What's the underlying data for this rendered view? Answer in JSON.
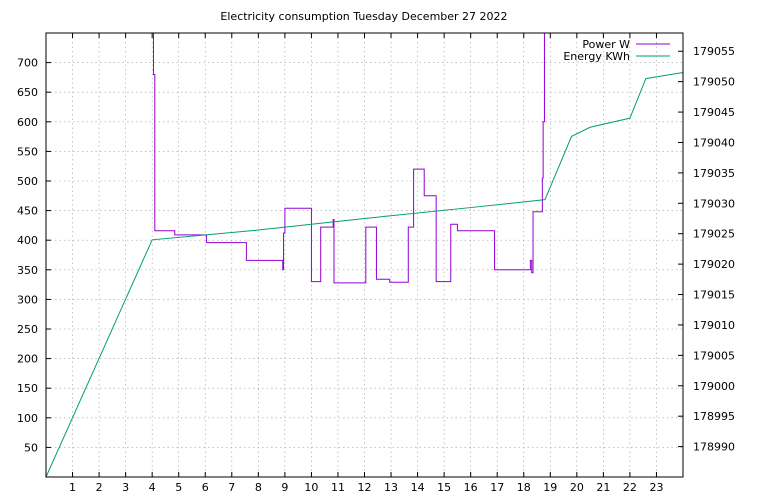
{
  "chart_data": {
    "type": "line",
    "title": "Electricity consumption Tuesday December 27 2022",
    "xlabel": "",
    "ylabel": "",
    "y2label": "",
    "xlim": [
      0,
      24
    ],
    "ylim": [
      0,
      750
    ],
    "y2lim": [
      178985,
      179058
    ],
    "x_ticks": [
      1,
      2,
      3,
      4,
      5,
      6,
      7,
      8,
      9,
      10,
      11,
      12,
      13,
      14,
      15,
      16,
      17,
      18,
      19,
      20,
      21,
      22,
      23
    ],
    "y_ticks": [
      50,
      100,
      150,
      200,
      250,
      300,
      350,
      400,
      450,
      500,
      550,
      600,
      650,
      700
    ],
    "y2_ticks": [
      178990,
      178995,
      179000,
      179005,
      179010,
      179015,
      179020,
      179025,
      179030,
      179035,
      179040,
      179045,
      179050,
      179055
    ],
    "grid": true,
    "legend_position": "top-right",
    "colors": {
      "power": "#9400d3",
      "energy": "#009e73"
    },
    "series": [
      {
        "name": "Power W",
        "axis": "y",
        "style": "steps",
        "points": [
          [
            4.0,
            750
          ],
          [
            4.05,
            680
          ],
          [
            4.1,
            416
          ],
          [
            4.8,
            416
          ],
          [
            4.85,
            409
          ],
          [
            6.0,
            409
          ],
          [
            6.05,
            396
          ],
          [
            7.5,
            396
          ],
          [
            7.55,
            366
          ],
          [
            8.9,
            366
          ],
          [
            8.92,
            350
          ],
          [
            8.95,
            412
          ],
          [
            9.0,
            454
          ],
          [
            9.95,
            454
          ],
          [
            10.0,
            330
          ],
          [
            10.3,
            330
          ],
          [
            10.35,
            422
          ],
          [
            10.8,
            422
          ],
          [
            10.82,
            435
          ],
          [
            10.85,
            328
          ],
          [
            12.0,
            328
          ],
          [
            12.05,
            422
          ],
          [
            12.4,
            422
          ],
          [
            12.45,
            334
          ],
          [
            12.9,
            334
          ],
          [
            12.95,
            329
          ],
          [
            13.6,
            329
          ],
          [
            13.65,
            422
          ],
          [
            13.8,
            422
          ],
          [
            13.85,
            520
          ],
          [
            14.2,
            520
          ],
          [
            14.25,
            475
          ],
          [
            14.65,
            475
          ],
          [
            14.7,
            330
          ],
          [
            15.2,
            330
          ],
          [
            15.25,
            427
          ],
          [
            15.45,
            427
          ],
          [
            15.5,
            416
          ],
          [
            16.85,
            416
          ],
          [
            16.9,
            350
          ],
          [
            18.2,
            350
          ],
          [
            18.25,
            366
          ],
          [
            18.3,
            345
          ],
          [
            18.35,
            448
          ],
          [
            18.65,
            448
          ],
          [
            18.7,
            505
          ],
          [
            18.73,
            600
          ],
          [
            18.78,
            750
          ]
        ]
      },
      {
        "name": "Energy KWh",
        "axis": "y2",
        "style": "line",
        "points": [
          [
            0.0,
            178985.0
          ],
          [
            4.0,
            179024.0
          ],
          [
            8.0,
            179025.6
          ],
          [
            12.0,
            179027.5
          ],
          [
            16.0,
            179029.3
          ],
          [
            18.8,
            179030.6
          ],
          [
            19.8,
            179041.0
          ],
          [
            20.5,
            179042.5
          ],
          [
            22.0,
            179044.0
          ],
          [
            22.6,
            179050.5
          ],
          [
            24.0,
            179051.5
          ]
        ]
      }
    ]
  }
}
